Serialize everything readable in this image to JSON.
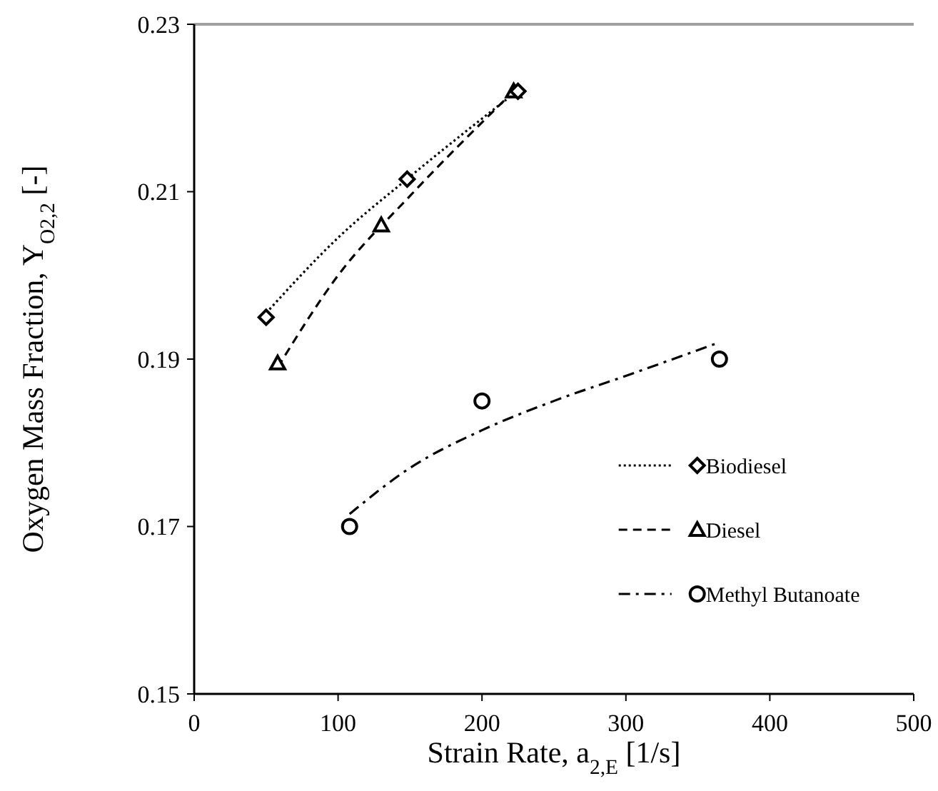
{
  "chart_data": {
    "type": "scatter",
    "xlabel": "Strain Rate, a$_{2,E}$ [1/s]",
    "ylabel": "Oxygen Mass Fraction, Y$_{O2,2}$ [-]",
    "xlim": [
      0,
      500
    ],
    "xticks": [
      0,
      100,
      200,
      300,
      400,
      500
    ],
    "ylim": [
      0.15,
      0.23
    ],
    "yticks": [
      0.15,
      0.17,
      0.19,
      0.21,
      0.23
    ],
    "grid": false,
    "legend": "bottom right",
    "series": [
      {
        "name": "Biodiesel",
        "marker": "diamond",
        "color": "#000000",
        "x": [
          50,
          148,
          225
        ],
        "values": [
          0.195,
          0.2115,
          0.222
        ]
      },
      {
        "name": "Diesel",
        "marker": "triangle",
        "color": "#000000",
        "x": [
          58,
          130,
          222
        ],
        "values": [
          0.1895,
          0.206,
          0.222
        ]
      },
      {
        "name": "Methyl Butanoate",
        "marker": "circle",
        "color": "#000000",
        "x": [
          108,
          200,
          365
        ],
        "values": [
          0.17,
          0.185,
          0.19
        ]
      },
      {
        "type": "line",
        "line_style": "dotted",
        "color": "#000000",
        "x": [
          50,
          100,
          150,
          228
        ],
        "values": [
          0.1955,
          0.2045,
          0.2118,
          0.2225
        ]
      },
      {
        "type": "line",
        "line_style": "dashed",
        "color": "#000000",
        "x": [
          58,
          100,
          150,
          222
        ],
        "values": [
          0.189,
          0.2,
          0.2095,
          0.222
        ]
      },
      {
        "type": "line",
        "line_style": "dashdot",
        "color": "#000000",
        "x": [
          108,
          150,
          200,
          250,
          300,
          365
        ],
        "values": [
          0.1715,
          0.177,
          0.1815,
          0.185,
          0.188,
          0.192
        ]
      }
    ]
  }
}
